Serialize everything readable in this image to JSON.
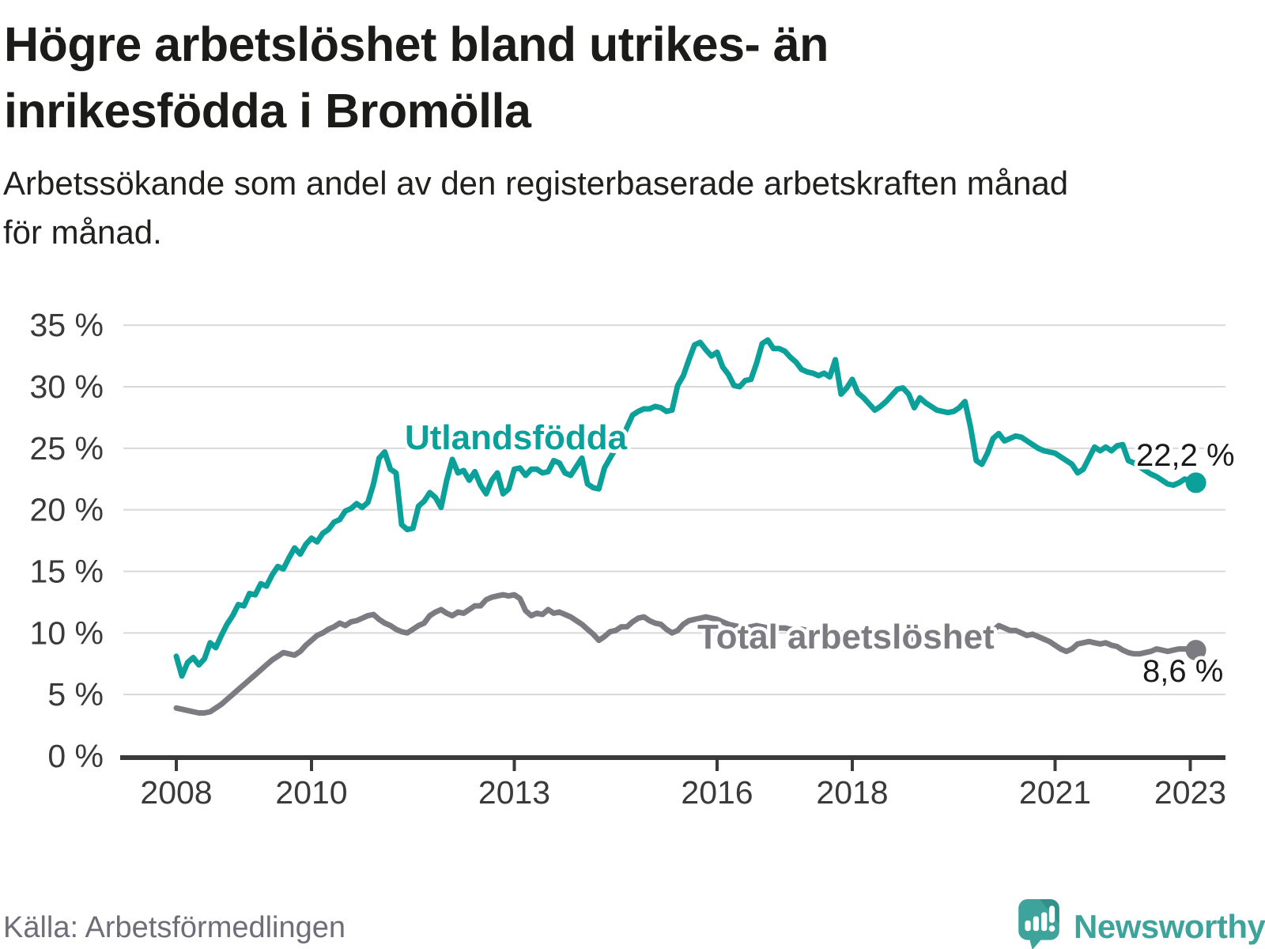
{
  "header": {
    "title_lines": [
      "Högre arbetslöshet bland utrikes- än",
      "inrikesfödda i Bromölla"
    ],
    "subtitle_lines": [
      "Arbetssökande som andel av den registerbaserade arbetskraften månad",
      "för månad."
    ]
  },
  "chart_data": {
    "type": "line",
    "title": "Högre arbetslöshet bland utrikes- än inrikesfödda i Bromölla",
    "subtitle": "Arbetssökande som andel av den registerbaserade arbetskraften månad för månad.",
    "x_unit": "month",
    "x_start": "2008-01",
    "x_end": "2023-02",
    "xlabel": "",
    "ylabel": "",
    "ylim": [
      0,
      36.8
    ],
    "grid": true,
    "legend": "inline-labels",
    "x_ticks": [
      {
        "year": 2008,
        "label": "2008"
      },
      {
        "year": 2010,
        "label": "2010"
      },
      {
        "year": 2013,
        "label": "2013"
      },
      {
        "year": 2016,
        "label": "2016"
      },
      {
        "year": 2018,
        "label": "2018"
      },
      {
        "year": 2021,
        "label": "2021"
      },
      {
        "year": 2023,
        "label": "2023"
      }
    ],
    "y_ticks": [
      {
        "value": 0,
        "label": "0 %"
      },
      {
        "value": 5,
        "label": "5 %"
      },
      {
        "value": 10,
        "label": "10 %"
      },
      {
        "value": 15,
        "label": "15 %"
      },
      {
        "value": 20,
        "label": "20 %"
      },
      {
        "value": 25,
        "label": "25 %"
      },
      {
        "value": 30,
        "label": "30 %"
      },
      {
        "value": 35,
        "label": "35 %"
      }
    ],
    "series": [
      {
        "name": "Utlandsfödda",
        "color": "#0ba099",
        "end_label": "22,2 %",
        "end_value": 22.2,
        "values": [
          8.1,
          6.5,
          7.6,
          8.0,
          7.4,
          7.9,
          9.2,
          8.8,
          9.8,
          10.7,
          11.4,
          12.3,
          12.2,
          13.2,
          13.1,
          14.0,
          13.8,
          14.7,
          15.4,
          15.2,
          16.1,
          16.9,
          16.4,
          17.2,
          17.7,
          17.4,
          18.1,
          18.4,
          19.0,
          19.2,
          19.9,
          20.1,
          20.5,
          20.2,
          20.6,
          22.1,
          24.2,
          24.7,
          23.3,
          23.0,
          18.8,
          18.4,
          18.5,
          20.3,
          20.7,
          21.4,
          21.0,
          20.2,
          22.4,
          24.1,
          23.0,
          23.2,
          22.4,
          23.1,
          22.0,
          21.3,
          22.4,
          23.0,
          21.3,
          21.7,
          23.3,
          23.4,
          22.8,
          23.3,
          23.3,
          23.0,
          23.1,
          24.0,
          23.8,
          23.0,
          22.8,
          23.5,
          24.2,
          22.1,
          21.8,
          21.7,
          23.4,
          24.2,
          25.0,
          25.7,
          26.7,
          27.7,
          28.0,
          28.2,
          28.2,
          28.4,
          28.3,
          28.0,
          28.1,
          30.1,
          30.9,
          32.2,
          33.4,
          33.6,
          33.0,
          32.5,
          32.8,
          31.6,
          31.0,
          30.1,
          30.0,
          30.5,
          30.6,
          31.9,
          33.5,
          33.8,
          33.1,
          33.1,
          32.9,
          32.4,
          32.0,
          31.4,
          31.2,
          31.1,
          30.9,
          31.1,
          30.8,
          32.2,
          29.4,
          29.9,
          30.6,
          29.5,
          29.1,
          28.6,
          28.1,
          28.4,
          28.8,
          29.3,
          29.8,
          29.9,
          29.4,
          28.3,
          29.1,
          28.7,
          28.4,
          28.1,
          28.0,
          27.9,
          28.0,
          28.3,
          28.8,
          26.7,
          24.0,
          23.7,
          24.6,
          25.8,
          26.2,
          25.6,
          25.8,
          26.0,
          25.9,
          25.6,
          25.3,
          25.0,
          24.8,
          24.7,
          24.6,
          24.3,
          24.0,
          23.7,
          23.0,
          23.3,
          24.2,
          25.1,
          24.8,
          25.1,
          24.8,
          25.2,
          25.3,
          24.0,
          23.8,
          23.5,
          23.2,
          22.9,
          22.7,
          22.4,
          22.1,
          22.0,
          22.2,
          22.5,
          22.4,
          22.2
        ]
      },
      {
        "name": "Total arbetslöshet",
        "color": "#7c7b81",
        "end_label": "8,6 %",
        "end_value": 8.6,
        "values": [
          3.9,
          3.8,
          3.7,
          3.6,
          3.5,
          3.5,
          3.6,
          3.9,
          4.2,
          4.6,
          5.0,
          5.4,
          5.8,
          6.2,
          6.6,
          7.0,
          7.4,
          7.8,
          8.1,
          8.4,
          8.3,
          8.2,
          8.5,
          9.0,
          9.4,
          9.8,
          10.0,
          10.3,
          10.5,
          10.8,
          10.6,
          10.9,
          11.0,
          11.2,
          11.4,
          11.5,
          11.1,
          10.8,
          10.6,
          10.3,
          10.1,
          10.0,
          10.3,
          10.6,
          10.8,
          11.4,
          11.7,
          11.9,
          11.6,
          11.4,
          11.7,
          11.6,
          11.9,
          12.2,
          12.2,
          12.7,
          12.9,
          13.0,
          13.1,
          13.0,
          13.1,
          12.8,
          11.8,
          11.4,
          11.6,
          11.5,
          11.9,
          11.6,
          11.7,
          11.5,
          11.3,
          11.0,
          10.7,
          10.3,
          9.9,
          9.4,
          9.7,
          10.1,
          10.2,
          10.5,
          10.5,
          10.9,
          11.2,
          11.3,
          11.0,
          10.8,
          10.7,
          10.3,
          10.0,
          10.2,
          10.7,
          11.0,
          11.1,
          11.2,
          11.3,
          11.2,
          11.1,
          10.9,
          10.7,
          10.6,
          10.5,
          10.4,
          10.5,
          10.6,
          10.5,
          10.4,
          10.3,
          10.4,
          10.4,
          10.3,
          10.2,
          10.3,
          10.2,
          10.1,
          10.2,
          10.1,
          10.0,
          10.1,
          10.0,
          9.9,
          9.9,
          9.8,
          9.7,
          9.8,
          9.7,
          9.6,
          9.7,
          9.6,
          9.5,
          9.6,
          9.5,
          9.4,
          9.5,
          9.4,
          9.3,
          9.4,
          9.3,
          9.2,
          9.3,
          9.4,
          9.5,
          9.6,
          9.7,
          9.9,
          10.0,
          10.2,
          10.6,
          10.4,
          10.2,
          10.2,
          10.0,
          9.8,
          9.9,
          9.7,
          9.5,
          9.3,
          9.0,
          8.7,
          8.5,
          8.7,
          9.1,
          9.2,
          9.3,
          9.2,
          9.1,
          9.2,
          9.0,
          8.9,
          8.6,
          8.4,
          8.3,
          8.3,
          8.4,
          8.5,
          8.7,
          8.6,
          8.5,
          8.6,
          8.7,
          8.7,
          8.7,
          8.6
        ]
      }
    ]
  },
  "footer": {
    "source": "Källa: Arbetsförmedlingen",
    "brand": "Newsworthy"
  },
  "colors": {
    "accent_teal": "#0ba099",
    "line_gray": "#7c7b81",
    "axis": "#3a3a3a",
    "grid": "#d8d8d8",
    "title": "#1b1b19",
    "source_text": "#716d78",
    "value_label": "#1a1a1a",
    "logo_teal": "#3ea39b",
    "logo_tail": "#2f8e87",
    "background": "#ffffff"
  }
}
